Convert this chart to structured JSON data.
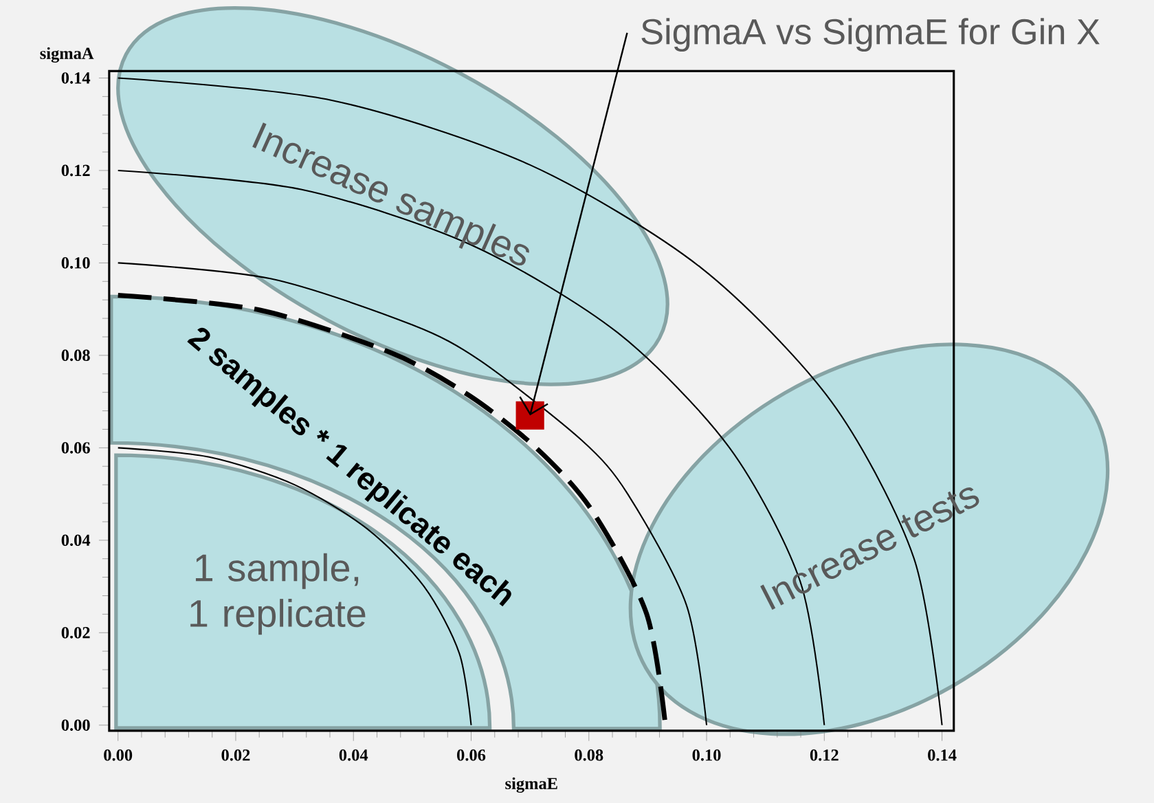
{
  "chart_data": {
    "type": "line",
    "xlabel": "sigmaE",
    "ylabel": "sigmaA",
    "xlim": [
      -0.0015,
      0.142
    ],
    "ylim": [
      -0.0012,
      0.1415
    ],
    "xticks": [
      {
        "value": 0,
        "label": "0.00"
      },
      {
        "value": 0.02,
        "label": "0.02"
      },
      {
        "value": 0.04,
        "label": "0.04"
      },
      {
        "value": 0.06,
        "label": "0.06"
      },
      {
        "value": 0.08,
        "label": "0.08"
      },
      {
        "value": 0.1,
        "label": "0.10"
      },
      {
        "value": 0.12,
        "label": "0.12"
      },
      {
        "value": 0.14,
        "label": "0.14"
      }
    ],
    "yticks": [
      {
        "value": 0,
        "label": "0.00"
      },
      {
        "value": 0.02,
        "label": "0.02"
      },
      {
        "value": 0.04,
        "label": "0.04"
      },
      {
        "value": 0.06,
        "label": "0.06"
      },
      {
        "value": 0.08,
        "label": "0.08"
      },
      {
        "value": 0.1,
        "label": "0.10"
      },
      {
        "value": 0.12,
        "label": "0.12"
      },
      {
        "value": 0.14,
        "label": "0.14"
      }
    ],
    "series": [
      {
        "color": "#000000",
        "x": [
          0,
          0.0155,
          0.03,
          0.0424,
          0.052,
          0.058,
          0.06
        ],
        "values": [
          0.06,
          0.058,
          0.052,
          0.0424,
          0.03,
          0.0155,
          0
        ]
      },
      {
        "color": "#000000",
        "line_style": "dashed",
        "x": [
          0,
          0.0241,
          0.0465,
          0.0598,
          0.0712,
          0.0805,
          0.0898,
          0.093
        ],
        "values": [
          0.093,
          0.0898,
          0.0805,
          0.0712,
          0.0598,
          0.0465,
          0.0241,
          0
        ]
      },
      {
        "color": "#000000",
        "x": [
          0,
          0.0259,
          0.05,
          0.0616,
          0.0788,
          0.0866,
          0.0966,
          0.1
        ],
        "values": [
          0.1,
          0.0966,
          0.0866,
          0.0788,
          0.0616,
          0.05,
          0.0259,
          0
        ]
      },
      {
        "color": "#000000",
        "x": [
          0,
          0.0311,
          0.06,
          0.0849,
          0.1039,
          0.1159,
          0.12
        ],
        "values": [
          0.12,
          0.1159,
          0.1039,
          0.0849,
          0.06,
          0.0311,
          0
        ]
      },
      {
        "color": "#000000",
        "x": [
          0,
          0.0362,
          0.07,
          0.099,
          0.1212,
          0.1352,
          0.14
        ],
        "values": [
          0.14,
          0.1352,
          0.1212,
          0.099,
          0.07,
          0.0362,
          0
        ]
      },
      {
        "type": "scatter",
        "marker": "square",
        "color": "#c00000",
        "x": [
          0.07
        ],
        "values": [
          0.067
        ]
      }
    ],
    "annotations": [
      {
        "text": "SigmaA vs SigmaE for Gin X",
        "x": 0.07,
        "y": 0.067
      },
      "Increase samples",
      "2 samples * 1 replicate each",
      "Increase tests",
      "1 sample, 1 replicate"
    ]
  }
}
